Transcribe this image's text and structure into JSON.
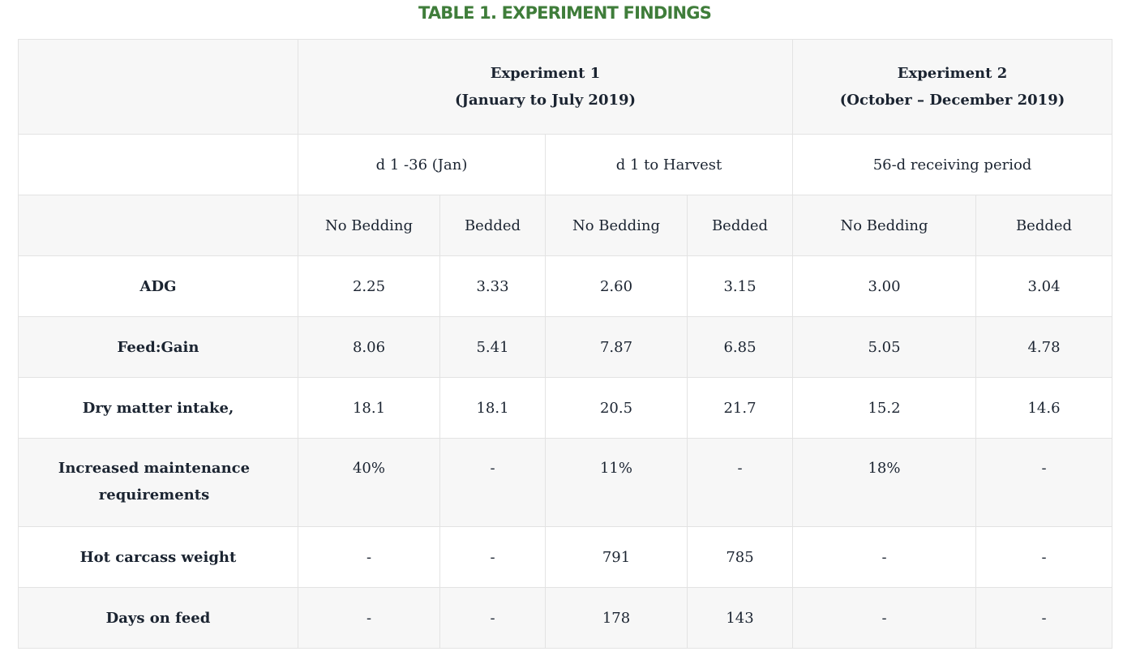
{
  "title": "TABLE 1. EXPERIMENT FINDINGS",
  "experiments": [
    {
      "name": "Experiment 1",
      "period": "(January to July 2019)"
    },
    {
      "name": "Experiment 2",
      "period": "(October – December 2019)"
    }
  ],
  "periods": [
    "d 1 -36 (Jan)",
    "d 1 to Harvest",
    "56-d receiving period"
  ],
  "groups": [
    "No Bedding",
    "Bedded",
    "No Bedding",
    "Bedded",
    "No Bedding",
    "Bedded"
  ],
  "rows": [
    {
      "label": "ADG",
      "values": [
        "2.25",
        "3.33",
        "2.60",
        "3.15",
        "3.00",
        "3.04"
      ]
    },
    {
      "label": "Feed:Gain",
      "values": [
        "8.06",
        "5.41",
        "7.87",
        "6.85",
        "5.05",
        "4.78"
      ]
    },
    {
      "label": "Dry matter intake,",
      "values": [
        "18.1",
        "18.1",
        "20.5",
        "21.7",
        "15.2",
        "14.6"
      ]
    },
    {
      "label": "Increased maintenance requirements",
      "values": [
        "40%",
        "-",
        "11%",
        "-",
        "18%",
        "-"
      ]
    },
    {
      "label": "Hot carcass weight",
      "values": [
        "-",
        "-",
        "791",
        "785",
        "-",
        "-"
      ]
    },
    {
      "label": "Days on feed",
      "values": [
        "-",
        "-",
        "178",
        "143",
        "-",
        "-"
      ]
    }
  ]
}
